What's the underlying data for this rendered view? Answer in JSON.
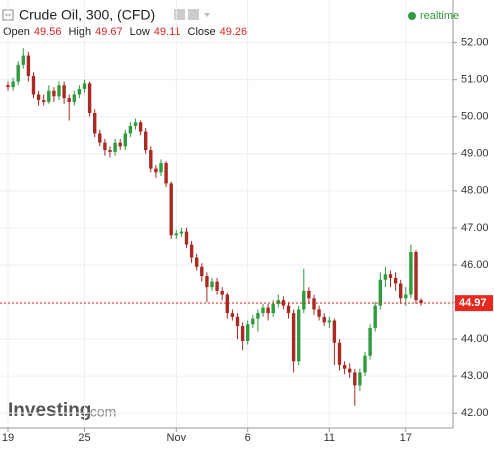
{
  "chart_data": {
    "type": "candlestick",
    "title": "Crude Oil, 300, (CFD)",
    "realtime_label": "realtime",
    "ohlc_legend": [
      {
        "label": "Open",
        "value": 49.56
      },
      {
        "label": "High",
        "value": 49.67
      },
      {
        "label": "Low",
        "value": 49.11
      },
      {
        "label": "Close",
        "value": 49.26
      }
    ],
    "watermark": "Investing",
    "watermark_suffix": ".com",
    "last_price": 44.97,
    "up_color": "#2e9b3e",
    "down_color": "#a82a22",
    "last_price_color": "#e8291f",
    "categories": [
      "19",
      null,
      null,
      null,
      null,
      null,
      null,
      null,
      null,
      null,
      null,
      null,
      null,
      null,
      null,
      "25",
      null,
      null,
      null,
      null,
      null,
      null,
      null,
      null,
      null,
      null,
      null,
      null,
      null,
      null,
      null,
      null,
      null,
      "Nov",
      null,
      null,
      null,
      null,
      null,
      null,
      null,
      null,
      null,
      null,
      null,
      null,
      null,
      "6",
      null,
      null,
      null,
      null,
      null,
      null,
      null,
      null,
      null,
      null,
      null,
      null,
      null,
      null,
      null,
      "11",
      null,
      null,
      null,
      null,
      null,
      null,
      null,
      null,
      null,
      null,
      null,
      null,
      null,
      null,
      "17",
      null,
      null,
      null
    ],
    "open": [
      50.85,
      50.8,
      50.95,
      51.4,
      51.65,
      51.1,
      50.6,
      50.45,
      50.4,
      50.7,
      50.55,
      50.85,
      50.5,
      50.4,
      50.6,
      50.75,
      50.9,
      50.1,
      49.55,
      49.3,
      49.1,
      49.05,
      49.3,
      49.2,
      49.55,
      49.75,
      49.85,
      49.6,
      49.1,
      48.6,
      48.5,
      48.75,
      48.2,
      46.8,
      46.85,
      46.9,
      46.55,
      46.2,
      45.95,
      45.7,
      45.4,
      45.55,
      45.3,
      45.2,
      44.7,
      44.6,
      44.35,
      43.95,
      44.4,
      44.55,
      44.7,
      44.85,
      44.7,
      44.95,
      45.05,
      44.9,
      44.7,
      43.4,
      44.8,
      45.3,
      45.1,
      44.8,
      44.6,
      44.45,
      44.5,
      43.9,
      43.3,
      43.2,
      43.1,
      42.75,
      43.1,
      43.55,
      44.3,
      44.9,
      45.6,
      45.75,
      45.65,
      45.5,
      45.1,
      45.2,
      46.35,
      45.05
    ],
    "high": [
      50.95,
      51.05,
      51.5,
      51.85,
      51.75,
      51.2,
      50.7,
      50.6,
      50.85,
      50.8,
      50.95,
      50.95,
      50.6,
      50.7,
      50.85,
      51.0,
      50.95,
      50.2,
      49.65,
      49.4,
      49.2,
      49.4,
      49.4,
      49.65,
      49.85,
      49.95,
      49.9,
      49.7,
      49.2,
      48.7,
      48.85,
      48.8,
      48.25,
      46.95,
      47.0,
      47.0,
      46.65,
      46.3,
      46.05,
      45.8,
      45.65,
      45.65,
      45.4,
      45.25,
      44.8,
      44.7,
      44.45,
      44.5,
      44.65,
      44.8,
      44.95,
      44.95,
      45.05,
      45.2,
      45.15,
      45.0,
      44.8,
      44.9,
      45.9,
      45.4,
      45.2,
      44.9,
      44.7,
      44.6,
      44.55,
      44.0,
      43.4,
      43.35,
      43.2,
      43.2,
      43.65,
      44.4,
      45.0,
      45.8,
      45.95,
      45.85,
      45.8,
      45.6,
      45.4,
      46.55,
      46.4,
      45.1
    ],
    "low": [
      50.7,
      50.7,
      50.85,
      51.3,
      50.95,
      50.5,
      50.3,
      50.3,
      50.35,
      50.4,
      50.45,
      50.35,
      49.9,
      50.3,
      50.5,
      50.65,
      50.0,
      49.45,
      49.2,
      48.95,
      48.9,
      48.95,
      49.1,
      49.1,
      49.45,
      49.65,
      49.5,
      49.0,
      48.5,
      48.35,
      48.4,
      48.1,
      46.7,
      46.7,
      46.75,
      46.45,
      46.05,
      45.85,
      45.55,
      45.0,
      45.3,
      45.2,
      45.05,
      44.55,
      44.5,
      44.0,
      43.7,
      43.85,
      44.3,
      44.2,
      44.6,
      44.5,
      44.6,
      44.85,
      44.8,
      44.55,
      43.1,
      43.3,
      44.7,
      44.95,
      44.65,
      44.5,
      44.35,
      44.3,
      43.3,
      43.15,
      43.05,
      42.95,
      42.2,
      42.6,
      43.0,
      43.45,
      44.2,
      44.8,
      45.4,
      45.4,
      45.3,
      44.95,
      44.9,
      45.1,
      44.95,
      44.9
    ],
    "close": [
      50.8,
      50.95,
      51.4,
      51.65,
      51.1,
      50.6,
      50.45,
      50.4,
      50.7,
      50.55,
      50.85,
      50.5,
      50.4,
      50.6,
      50.75,
      50.9,
      50.1,
      49.55,
      49.3,
      49.1,
      49.05,
      49.3,
      49.2,
      49.55,
      49.75,
      49.85,
      49.6,
      49.1,
      48.6,
      48.5,
      48.75,
      48.2,
      46.8,
      46.85,
      46.9,
      46.55,
      46.2,
      45.95,
      45.7,
      45.4,
      45.55,
      45.3,
      45.2,
      44.7,
      44.6,
      44.35,
      43.95,
      44.4,
      44.55,
      44.7,
      44.85,
      44.7,
      44.95,
      45.05,
      44.9,
      44.7,
      43.4,
      44.8,
      45.3,
      45.1,
      44.8,
      44.6,
      44.45,
      44.5,
      43.9,
      43.3,
      43.2,
      43.1,
      42.75,
      43.1,
      43.55,
      44.3,
      44.9,
      45.6,
      45.75,
      45.65,
      45.5,
      45.1,
      45.2,
      46.35,
      45.05,
      44.97
    ],
    "ylim": [
      41.6,
      53.15
    ],
    "yticks": [
      {
        "value": 42,
        "label": "42.00"
      },
      {
        "value": 43,
        "label": "43.00"
      },
      {
        "value": 44,
        "label": "44.00"
      },
      {
        "value": 45,
        "label": "45.00"
      },
      {
        "value": 46,
        "label": "46.00"
      },
      {
        "value": 47,
        "label": "47.00"
      },
      {
        "value": 48,
        "label": "48.00"
      },
      {
        "value": 49,
        "label": "49.00"
      },
      {
        "value": 50,
        "label": "50.00"
      },
      {
        "value": 51,
        "label": "51.00"
      },
      {
        "value": 52,
        "label": "52.00"
      }
    ],
    "grid": true
  }
}
